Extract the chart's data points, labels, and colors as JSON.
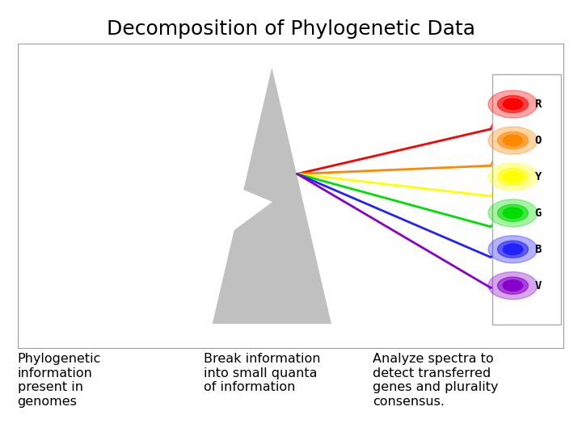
{
  "title": "Decomposition of Phylogenetic Data",
  "title_fontsize": 18,
  "title_fontweight": "normal",
  "bg_color": "#ffffff",
  "image_bg": "#000000",
  "prism_color": "#c0c0c0",
  "spectrum_colors": [
    "#ff0000",
    "#ff8800",
    "#ffff00",
    "#00dd00",
    "#2222ff",
    "#8800cc"
  ],
  "spectrum_labels": [
    "R",
    "O",
    "Y",
    "G",
    "B",
    "V"
  ],
  "caption1": "Phylogenetic\ninformation\npresent in\ngenomes",
  "caption2": "Break information\ninto small quanta\nof information",
  "caption3": "Analyze spectra to\ndetect transferred\ngenes and plurality\nconsensus.",
  "caption_fontsize": 11.5
}
